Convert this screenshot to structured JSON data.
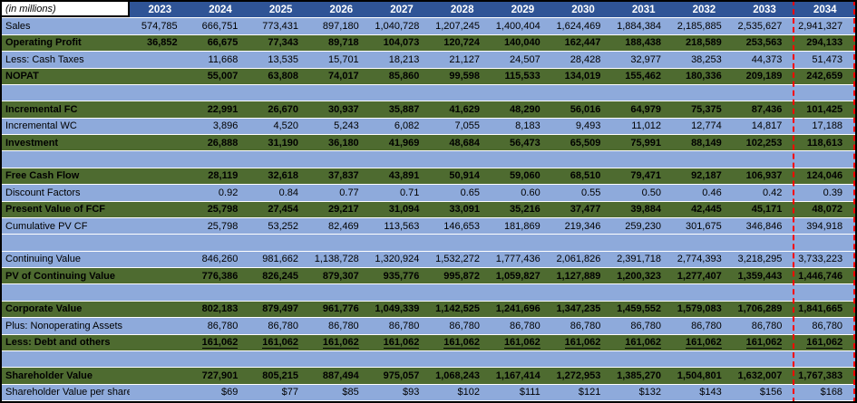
{
  "title_cell": "(in millions)",
  "colors": {
    "header_bg": "#2F5496",
    "row_blue": "#8EAADB",
    "row_green": "#4E6B30",
    "highlight_border": "#FF0000",
    "header_text": "#FFFFFF",
    "body_text": "#000000"
  },
  "highlight_column": "2034",
  "columns": [
    "2023",
    "2024",
    "2025",
    "2026",
    "2027",
    "2028",
    "2029",
    "2030",
    "2031",
    "2032",
    "2033",
    "2034"
  ],
  "rows": [
    {
      "label": "Sales",
      "style": "blue",
      "values": [
        "574,785",
        "666,751",
        "773,431",
        "897,180",
        "1,040,728",
        "1,207,245",
        "1,400,404",
        "1,624,469",
        "1,884,384",
        "2,185,885",
        "2,535,627",
        "2,941,327"
      ]
    },
    {
      "label": "Operating Profit",
      "style": "green",
      "values": [
        "36,852",
        "66,675",
        "77,343",
        "89,718",
        "104,073",
        "120,724",
        "140,040",
        "162,447",
        "188,438",
        "218,589",
        "253,563",
        "294,133"
      ]
    },
    {
      "label": "Less: Cash Taxes",
      "style": "blue",
      "values": [
        "",
        "11,668",
        "13,535",
        "15,701",
        "18,213",
        "21,127",
        "24,507",
        "28,428",
        "32,977",
        "38,253",
        "44,373",
        "51,473"
      ]
    },
    {
      "label": "NOPAT",
      "style": "green",
      "values": [
        "",
        "55,007",
        "63,808",
        "74,017",
        "85,860",
        "99,598",
        "115,533",
        "134,019",
        "155,462",
        "180,336",
        "209,189",
        "242,659"
      ]
    },
    {
      "label": "",
      "style": "blank",
      "values": []
    },
    {
      "label": "Incremental FC",
      "style": "green",
      "values": [
        "",
        "22,991",
        "26,670",
        "30,937",
        "35,887",
        "41,629",
        "48,290",
        "56,016",
        "64,979",
        "75,375",
        "87,436",
        "101,425"
      ]
    },
    {
      "label": "Incremental WC",
      "style": "blue",
      "values": [
        "",
        "3,896",
        "4,520",
        "5,243",
        "6,082",
        "7,055",
        "8,183",
        "9,493",
        "11,012",
        "12,774",
        "14,817",
        "17,188"
      ]
    },
    {
      "label": "Investment",
      "style": "green",
      "values": [
        "",
        "26,888",
        "31,190",
        "36,180",
        "41,969",
        "48,684",
        "56,473",
        "65,509",
        "75,991",
        "88,149",
        "102,253",
        "118,613"
      ]
    },
    {
      "label": "",
      "style": "blank",
      "values": []
    },
    {
      "label": "Free Cash Flow",
      "style": "green",
      "values": [
        "",
        "28,119",
        "32,618",
        "37,837",
        "43,891",
        "50,914",
        "59,060",
        "68,510",
        "79,471",
        "92,187",
        "106,937",
        "124,046"
      ]
    },
    {
      "label": "Discount Factors",
      "style": "blue",
      "values": [
        "",
        "0.92",
        "0.84",
        "0.77",
        "0.71",
        "0.65",
        "0.60",
        "0.55",
        "0.50",
        "0.46",
        "0.42",
        "0.39"
      ]
    },
    {
      "label": "Present Value of FCF",
      "style": "green",
      "values": [
        "",
        "25,798",
        "27,454",
        "29,217",
        "31,094",
        "33,091",
        "35,216",
        "37,477",
        "39,884",
        "42,445",
        "45,171",
        "48,072"
      ]
    },
    {
      "label": "Cumulative PV CF",
      "style": "blue",
      "values": [
        "",
        "25,798",
        "53,252",
        "82,469",
        "113,563",
        "146,653",
        "181,869",
        "219,346",
        "259,230",
        "301,675",
        "346,846",
        "394,918"
      ]
    },
    {
      "label": "",
      "style": "blank",
      "values": []
    },
    {
      "label": "Continuing Value",
      "style": "blue",
      "values": [
        "",
        "846,260",
        "981,662",
        "1,138,728",
        "1,320,924",
        "1,532,272",
        "1,777,436",
        "2,061,826",
        "2,391,718",
        "2,774,393",
        "3,218,295",
        "3,733,223"
      ]
    },
    {
      "label": "PV of Continuing Value",
      "style": "green",
      "values": [
        "",
        "776,386",
        "826,245",
        "879,307",
        "935,776",
        "995,872",
        "1,059,827",
        "1,127,889",
        "1,200,323",
        "1,277,407",
        "1,359,443",
        "1,446,746"
      ]
    },
    {
      "label": "",
      "style": "blank",
      "values": []
    },
    {
      "label": "Corporate Value",
      "style": "green",
      "values": [
        "",
        "802,183",
        "879,497",
        "961,776",
        "1,049,339",
        "1,142,525",
        "1,241,696",
        "1,347,235",
        "1,459,552",
        "1,579,083",
        "1,706,289",
        "1,841,665"
      ]
    },
    {
      "label": "Plus: Nonoperating Assets",
      "style": "blue",
      "values": [
        "",
        "86,780",
        "86,780",
        "86,780",
        "86,780",
        "86,780",
        "86,780",
        "86,780",
        "86,780",
        "86,780",
        "86,780",
        "86,780"
      ]
    },
    {
      "label": "Less: Debt and others",
      "style": "green",
      "underline": true,
      "values": [
        "",
        "161,062",
        "161,062",
        "161,062",
        "161,062",
        "161,062",
        "161,062",
        "161,062",
        "161,062",
        "161,062",
        "161,062",
        "161,062"
      ]
    },
    {
      "label": "",
      "style": "blank",
      "values": []
    },
    {
      "label": "Shareholder Value",
      "style": "green",
      "values": [
        "",
        "727,901",
        "805,215",
        "887,494",
        "975,057",
        "1,068,243",
        "1,167,414",
        "1,272,953",
        "1,385,270",
        "1,504,801",
        "1,632,007",
        "1,767,383"
      ]
    },
    {
      "label": "Shareholder Value per share",
      "style": "blue",
      "values": [
        "",
        "$69",
        "$77",
        "$85",
        "$93",
        "$102",
        "$111",
        "$121",
        "$132",
        "$143",
        "$156",
        "$168"
      ]
    }
  ]
}
